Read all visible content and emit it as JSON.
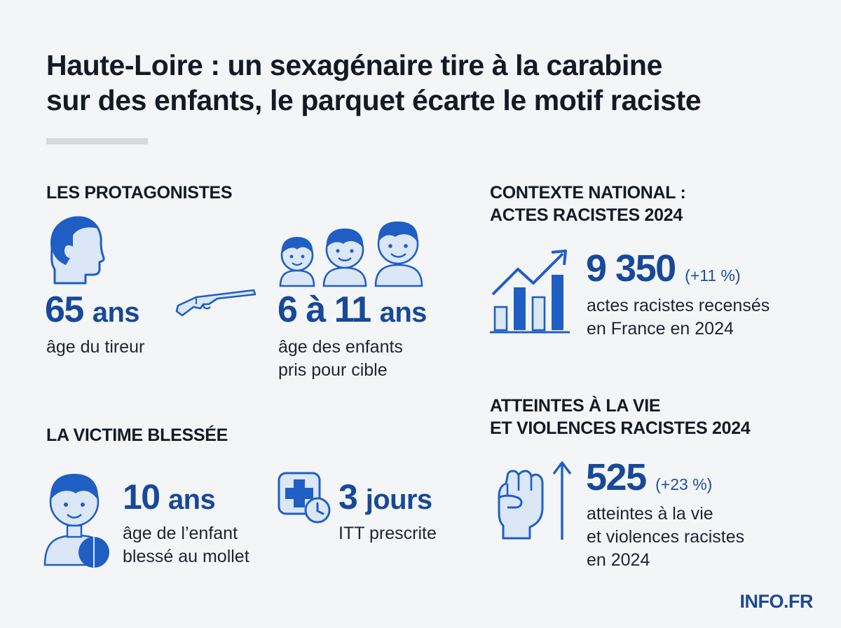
{
  "header": {
    "title_line1": "Haute-Loire : un sexagénaire tire à la carabine",
    "title_line2": "sur des enfants, le parquet écarte le motif raciste"
  },
  "protagonists": {
    "heading": "LES PROTAGONISTES",
    "shooter": {
      "number": "65",
      "unit": "ans",
      "label": "âge du tireur"
    },
    "children": {
      "number": "6 à 11",
      "unit": "ans",
      "label_line1": "âge des enfants",
      "label_line2": "pris pour cible"
    }
  },
  "victim": {
    "heading": "LA VICTIME BLESSÉE",
    "age": {
      "number": "10",
      "unit": "ans",
      "label_line1": "âge de l’enfant",
      "label_line2": "blessé au mollet"
    },
    "itt": {
      "number": "3",
      "unit": "jours",
      "label": "ITT prescrite"
    }
  },
  "national": {
    "heading_line1": "CONTEXTE NATIONAL :",
    "heading_line2": "ACTES RACISTES 2024",
    "value": "9 350",
    "change": "(+11 %)",
    "label_line1": "actes racistes recensés",
    "label_line2": "en France en 2024"
  },
  "violence": {
    "heading_line1": "ATTEINTES À LA VIE",
    "heading_line2": "ET VIOLENCES RACISTES 2024",
    "value": "525",
    "change": "(+23 %)",
    "label_line1": "atteintes à la vie",
    "label_line2": "et violences racistes",
    "label_line3": "en 2024"
  },
  "brand": "INFO.FR",
  "colors": {
    "accent": "#17499a",
    "icon_blue": "#1f5fc4",
    "icon_light": "#dbe7f7",
    "background": "#f4f5f7"
  },
  "icons": [
    "man-head-icon",
    "rifle-icon",
    "children-icon",
    "boy-injured-icon",
    "medical-clock-icon",
    "growth-chart-icon",
    "raised-fist-icon",
    "up-arrow-icon"
  ]
}
